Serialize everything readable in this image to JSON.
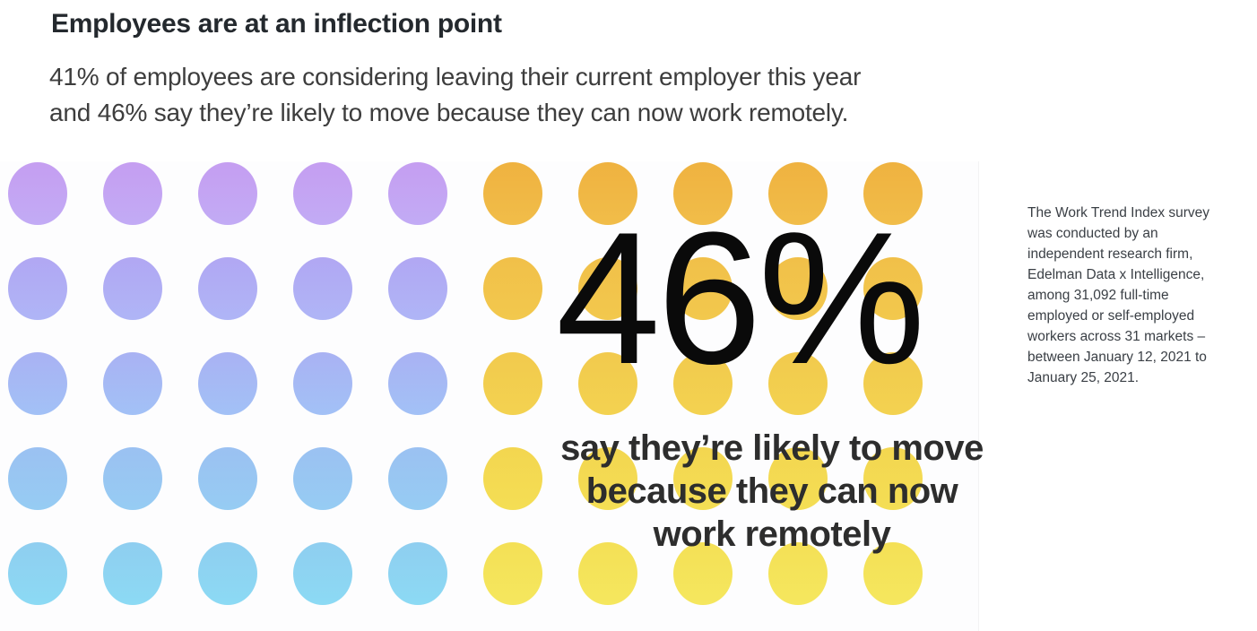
{
  "header": {
    "title": "Employees are at an inflection point",
    "subtitle": "41% of employees are considering leaving their current employer this year\nand 46% say they’re likely to move because they can now work remotely."
  },
  "figure": {
    "big_percent": "46%",
    "caption": "say they’re likely to move\nbecause they can now\nwork remotely"
  },
  "side_note": {
    "text": "The Work Trend Index survey\nwas conducted by an\nindependent research firm,\nEdelman Data x Intelligence,\namong 31,092 full-time\nemployed or self-employed\nworkers across 31 markets –\nbetween January 12, 2021 to\nJanuary 25, 2021."
  },
  "chart_data": {
    "type": "waffle",
    "title": "Employees are at an inflection point",
    "rows": 5,
    "cols": 10,
    "dot_total": 50,
    "highlight": {
      "value": 46,
      "unit": "%",
      "label": "say they’re likely to move because they can now work remotely"
    },
    "stats": [
      {
        "value": 41,
        "unit": "%",
        "label": "of employees are considering leaving their current employer this year"
      },
      {
        "value": 46,
        "unit": "%",
        "label": "say they’re likely to move because they can now work remotely"
      }
    ],
    "legend": "left 5 columns = purple-to-blue gradient dots (other employees); right 5 columns = yellow gradient dots (46% likely to move)",
    "groups": [
      {
        "name": "other-employees",
        "cols": 5,
        "row_colors": [
          [
            "#c59ef1",
            "#c2abf5"
          ],
          [
            "#b1a7f3",
            "#afb5f6"
          ],
          [
            "#a9b2f3",
            "#a2c1f6"
          ],
          [
            "#9bc1f2",
            "#96ccf3"
          ],
          [
            "#8fcef0",
            "#8cdaf4"
          ]
        ]
      },
      {
        "name": "likely-to-move",
        "cols": 5,
        "row_colors": [
          [
            "#efb240",
            "#f1bd49"
          ],
          [
            "#f1c049",
            "#f2c84d"
          ],
          [
            "#f2ca4d",
            "#f3d250"
          ],
          [
            "#f3d650",
            "#f4de54"
          ],
          [
            "#f4e056",
            "#f5e75e"
          ]
        ]
      }
    ],
    "text_color_highlight": "#0a0a0a",
    "background": "#fdfdfe"
  }
}
